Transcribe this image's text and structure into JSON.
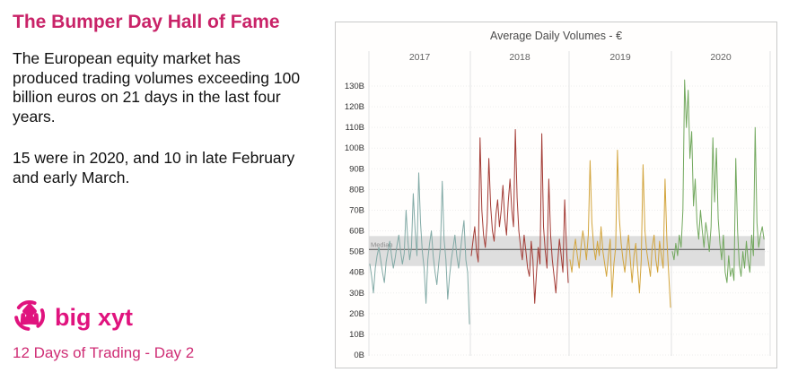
{
  "left_panel": {
    "title": "The Bumper Day Hall of Fame",
    "paragraph1": "The European equity market has produced trading volumes exceeding 100 billion euros on 21 days in the last four years.",
    "paragraph2": "15 were in 2020, and 10 in late February and early March.",
    "logo_text": "big xyt",
    "caption": "12 Days of Trading - Day 2"
  },
  "colors": {
    "heading_pink": "#c92368",
    "logo_pink": "#e0137e",
    "caption_pink": "#cf2d75",
    "band_gray": "#d8d8d8",
    "median_line": "#4d4d4d",
    "panel_border": "#c9c9c9"
  },
  "chart_data": {
    "type": "line",
    "title": "Average Daily Volumes - €",
    "ylim": [
      0,
      130
    ],
    "tick_step": 10,
    "tick_suffix": "B",
    "grid": "on",
    "band": {
      "low": 43,
      "high": 57.5
    },
    "median": {
      "label": "Median",
      "value": 51
    },
    "years": [
      {
        "label": "2017",
        "color": "#82aaa6",
        "values": [
          44,
          38,
          30,
          42,
          48,
          52,
          46,
          40,
          35,
          45,
          50,
          55,
          48,
          42,
          47,
          53,
          58,
          50,
          44,
          49,
          70,
          55,
          46,
          52,
          78,
          60,
          48,
          88,
          64,
          50,
          42,
          25,
          46,
          54,
          60,
          48,
          40,
          34,
          44,
          52,
          84,
          56,
          46,
          27,
          38,
          46,
          52,
          58,
          48,
          42,
          50,
          58,
          65,
          46,
          40,
          15
        ]
      },
      {
        "label": "2018",
        "color": "#a33b35",
        "values": [
          48,
          55,
          62,
          50,
          45,
          105,
          70,
          58,
          52,
          64,
          95,
          72,
          60,
          55,
          68,
          75,
          62,
          70,
          82,
          66,
          58,
          74,
          85,
          70,
          62,
          109,
          76,
          60,
          52,
          46,
          58,
          50,
          42,
          38,
          55,
          46,
          25,
          40,
          52,
          44,
          107,
          62,
          50,
          42,
          85,
          58,
          46,
          38,
          30,
          44,
          56,
          48,
          40,
          75,
          52,
          35
        ]
      },
      {
        "label": "2019",
        "color": "#d2a43c",
        "values": [
          46,
          40,
          50,
          56,
          48,
          42,
          52,
          60,
          54,
          46,
          58,
          94,
          64,
          52,
          46,
          55,
          48,
          62,
          50,
          44,
          38,
          48,
          56,
          28,
          44,
          52,
          99,
          66,
          54,
          46,
          40,
          50,
          58,
          46,
          35,
          48,
          54,
          42,
          30,
          46,
          92,
          60,
          50,
          44,
          38,
          52,
          58,
          46,
          40,
          55,
          48,
          42,
          85,
          56,
          40,
          23
        ]
      },
      {
        "label": "2020",
        "color": "#72a85e",
        "values": [
          50,
          46,
          54,
          48,
          58,
          52,
          70,
          133,
          110,
          128,
          95,
          108,
          72,
          85,
          64,
          56,
          70,
          60,
          52,
          64,
          58,
          50,
          62,
          105,
          74,
          100,
          66,
          54,
          46,
          58,
          40,
          35,
          48,
          38,
          42,
          36,
          95,
          60,
          44,
          38,
          50,
          42,
          55,
          46,
          40,
          58,
          48,
          110,
          64,
          52,
          58,
          62,
          56
        ]
      }
    ]
  }
}
